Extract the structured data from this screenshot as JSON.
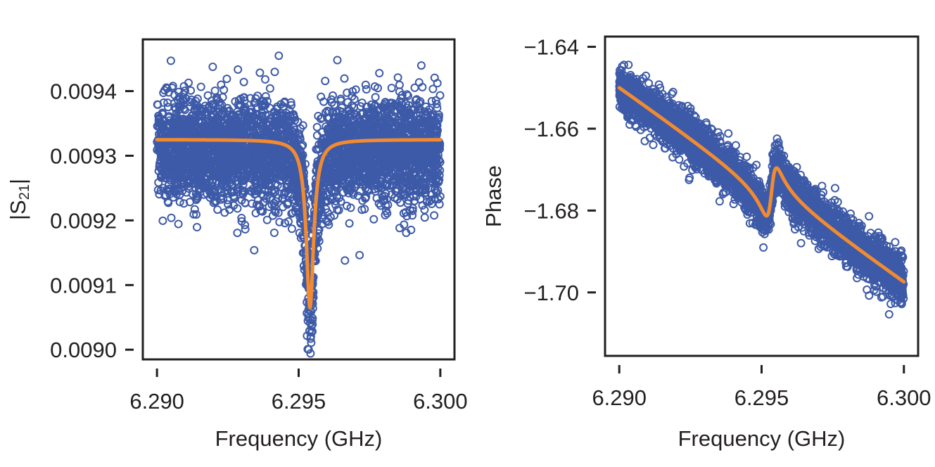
{
  "chart_data": [
    {
      "type": "scatter",
      "xlabel": "Frequency (GHz)",
      "ylabel": "|S21|",
      "ylabel_main": "|S",
      "ylabel_sub": "21",
      "ylabel_end": "|",
      "xlim": [
        6.2895,
        6.3005
      ],
      "ylim": [
        0.008985,
        0.00948
      ],
      "xticks": [
        6.29,
        6.295,
        6.3
      ],
      "xtick_labels": [
        "6.290",
        "6.295",
        "6.300"
      ],
      "yticks": [
        0.009,
        0.0091,
        0.0092,
        0.0093,
        0.0094
      ],
      "ytick_labels": [
        "0.0090",
        "0.0091",
        "0.0092",
        "0.0093",
        "0.0094"
      ],
      "grid": false,
      "series": [
        {
          "kind": "scatter-points",
          "color": "#3d5aa8",
          "x_range": [
            6.29,
            6.3
          ],
          "n_points": 4000,
          "baseline": 0.00931,
          "noise_sd": 4e-05,
          "dip_center": 6.2954,
          "dip_depth": 0.00026,
          "dip_halfwidth": 0.00016
        },
        {
          "kind": "fit-line",
          "color": "#f28b30",
          "model": "lorentzian-dip",
          "baseline": 0.009325,
          "center": 6.2954,
          "depth": 0.00026,
          "halfwidth": 0.00016
        }
      ]
    },
    {
      "type": "scatter",
      "xlabel": "Frequency (GHz)",
      "ylabel": "Phase",
      "xlim": [
        6.2895,
        6.3005
      ],
      "ylim": [
        -1.7155,
        -1.6375
      ],
      "xticks": [
        6.29,
        6.295,
        6.3
      ],
      "xtick_labels": [
        "6.290",
        "6.295",
        "6.300"
      ],
      "yticks": [
        -1.64,
        -1.66,
        -1.68,
        -1.7
      ],
      "ytick_labels": [
        "−1.64",
        "−1.66",
        "−1.68",
        "−1.70"
      ],
      "grid": false,
      "series": [
        {
          "kind": "scatter-points",
          "color": "#3d5aa8",
          "x_range": [
            6.29,
            6.3
          ],
          "n_points": 4000,
          "noise_sd": 0.0028
        },
        {
          "kind": "fit-line",
          "color": "#f28b30",
          "model": "dispersive-phase",
          "start": -1.6495,
          "slope_per_GHz": -4.85,
          "center": 6.29535,
          "halfwidth": 0.0002,
          "amplitude": 0.0135
        }
      ]
    }
  ]
}
